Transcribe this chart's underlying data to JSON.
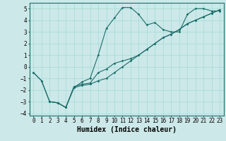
{
  "title": "",
  "xlabel": "Humidex (Indice chaleur)",
  "ylabel": "",
  "bg_color": "#cce8e8",
  "line_color": "#1a6e6a",
  "grid_color": "#aadddd",
  "xlim": [
    -0.5,
    23.5
  ],
  "ylim": [
    -4.2,
    5.5
  ],
  "xticks": [
    0,
    1,
    2,
    3,
    4,
    5,
    6,
    7,
    8,
    9,
    10,
    11,
    12,
    13,
    14,
    15,
    16,
    17,
    18,
    19,
    20,
    21,
    22,
    23
  ],
  "yticks": [
    -4,
    -3,
    -2,
    -1,
    0,
    1,
    2,
    3,
    4,
    5
  ],
  "line1_x": [
    0,
    1,
    2,
    3,
    4,
    5,
    6,
    7,
    8,
    9,
    10,
    11,
    12,
    13,
    14,
    15,
    16,
    17,
    18,
    19,
    20,
    21,
    22,
    23
  ],
  "line1_y": [
    -0.5,
    -1.2,
    -3.0,
    -3.1,
    -3.5,
    -1.8,
    -1.3,
    -1.0,
    1.0,
    3.3,
    4.2,
    5.1,
    5.1,
    4.5,
    3.6,
    3.8,
    3.2,
    3.0,
    3.0,
    4.5,
    5.0,
    5.0,
    4.8,
    4.8
  ],
  "line2_x": [
    0,
    1,
    2,
    3,
    4,
    5,
    6,
    7,
    8,
    9,
    10,
    11,
    12,
    13,
    14,
    15,
    16,
    17,
    18,
    19,
    20,
    21,
    22,
    23
  ],
  "line2_y": [
    -0.5,
    -1.2,
    -3.0,
    -3.1,
    -3.5,
    -1.7,
    -1.5,
    -1.4,
    -0.5,
    -0.2,
    0.3,
    0.5,
    0.7,
    1.0,
    1.5,
    2.0,
    2.5,
    2.8,
    3.2,
    3.7,
    4.0,
    4.3,
    4.6,
    4.9
  ],
  "line3_x": [
    2,
    3,
    4,
    5,
    6,
    7,
    8,
    9,
    10,
    11,
    12,
    13,
    14,
    15,
    16,
    17,
    18,
    19,
    20,
    21,
    22,
    23
  ],
  "line3_y": [
    -3.0,
    -3.1,
    -3.5,
    -1.8,
    -1.6,
    -1.5,
    -1.2,
    -1.0,
    -0.5,
    0.0,
    0.5,
    1.0,
    1.5,
    2.0,
    2.5,
    2.8,
    3.2,
    3.7,
    4.0,
    4.3,
    4.6,
    4.9
  ],
  "font_family": "monospace",
  "tick_fontsize": 5.5,
  "xlabel_fontsize": 7
}
